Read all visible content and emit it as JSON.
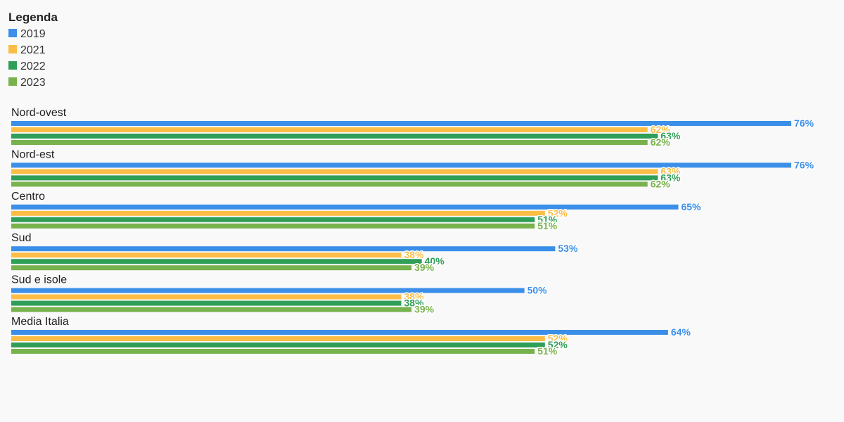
{
  "chart_data": {
    "type": "bar",
    "orientation": "horizontal",
    "legend": {
      "title": "Legenda",
      "placement": "top-left"
    },
    "categories": [
      "Nord-ovest",
      "Nord-est",
      "Centro",
      "Sud",
      "Sud e isole",
      "Media Italia"
    ],
    "series": [
      {
        "name": "2019",
        "color": "#3b8fe8",
        "values": [
          76,
          76,
          65,
          53,
          50,
          64
        ],
        "labels": [
          "76%",
          "76%",
          "65%",
          "53%",
          "50%",
          "64%"
        ]
      },
      {
        "name": "2021",
        "color": "#fbbd45",
        "values": [
          62,
          63,
          52,
          38,
          38,
          52
        ],
        "labels": [
          "62%",
          "63%",
          "52%",
          "38%",
          "38%",
          "52%"
        ]
      },
      {
        "name": "2022",
        "color": "#2f9e57",
        "values": [
          63,
          63,
          51,
          40,
          38,
          52
        ],
        "labels": [
          "63%",
          "63%",
          "51%",
          "40%",
          "38%",
          "52%"
        ]
      },
      {
        "name": "2023",
        "color": "#78b24d",
        "values": [
          62,
          62,
          51,
          39,
          39,
          51
        ],
        "labels": [
          "62%",
          "62%",
          "51%",
          "39%",
          "39%",
          "51%"
        ]
      }
    ],
    "xlim": [
      0,
      76
    ],
    "grid": false,
    "title": "",
    "xlabel": "",
    "ylabel": ""
  }
}
